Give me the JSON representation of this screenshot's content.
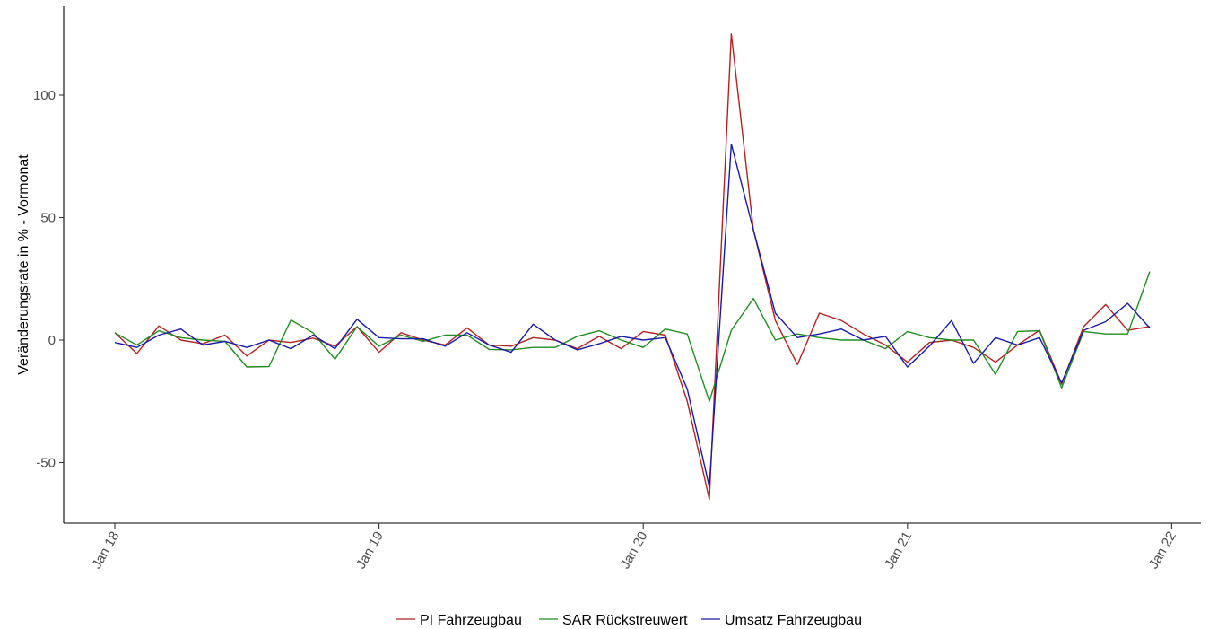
{
  "chart_data": {
    "type": "line",
    "title": "",
    "xlabel": "",
    "ylabel": "Veränderungsrate in % - Vormonat",
    "x_ticks": [
      "Jan 18",
      "Jan 19",
      "Jan 20",
      "Jan 21",
      "Jan 22"
    ],
    "y_ticks": [
      "-50",
      "0",
      "50",
      "100"
    ],
    "ylim": [
      -75,
      135
    ],
    "xlim_months": "2017-12 to 2022-01",
    "grid": false,
    "legend_position": "bottom",
    "start_month": "2018-01",
    "series": [
      {
        "name": "PI Fahrzeugbau",
        "color": "#b22222",
        "values": [
          3.0,
          -5.5,
          5.8,
          0.0,
          -1.5,
          2.0,
          -6.5,
          0.0,
          -1.0,
          0.8,
          -2.5,
          5.5,
          -5.0,
          3.0,
          0.0,
          -2.0,
          5.0,
          -2.0,
          -2.5,
          1.0,
          0.0,
          -3.5,
          1.5,
          -3.5,
          3.5,
          2.0,
          -25.0,
          -65.0,
          125.0,
          45.0,
          8.0,
          -10.0,
          11.0,
          8.0,
          2.5,
          -2.0,
          -9.0,
          -1.0,
          0.0,
          -3.0,
          -9.0,
          -2.0,
          4.0,
          -18.0,
          5.5,
          14.5,
          4.0,
          5.5
        ]
      },
      {
        "name": "SAR Rückstreuwert",
        "color": "#228b22",
        "values": [
          3.0,
          -2.0,
          3.8,
          1.0,
          0.0,
          -0.5,
          -11.0,
          -10.8,
          8.2,
          3.0,
          -7.8,
          5.5,
          -2.5,
          2.0,
          -0.5,
          2.0,
          2.0,
          -3.8,
          -4.0,
          -3.0,
          -3.0,
          1.5,
          3.8,
          0.0,
          -3.0,
          4.5,
          2.5,
          -25.0,
          4.0,
          17.0,
          0.0,
          2.5,
          1.0,
          0.0,
          0.0,
          -3.5,
          3.5,
          1.0,
          0.0,
          0.0,
          -14.0,
          3.5,
          3.8,
          -19.5,
          3.5,
          2.5,
          2.5,
          28.0
        ]
      },
      {
        "name": "Umsatz Fahrzeugbau",
        "color": "#1a1aa8",
        "values": [
          -1.0,
          -3.0,
          2.0,
          4.5,
          -2.0,
          -0.5,
          -3.0,
          0.0,
          -3.5,
          2.0,
          -3.5,
          8.5,
          1.0,
          0.5,
          0.5,
          -2.5,
          3.0,
          -2.0,
          -5.0,
          6.5,
          0.0,
          -4.0,
          -1.5,
          1.5,
          0.0,
          1.0,
          -20.0,
          -60.0,
          80.0,
          45.0,
          11.0,
          1.0,
          2.5,
          4.5,
          0.0,
          1.5,
          -11.0,
          -2.5,
          8.0,
          -9.5,
          1.0,
          -2.0,
          1.0,
          -17.5,
          4.0,
          7.5,
          15.0,
          5.0
        ]
      }
    ]
  }
}
